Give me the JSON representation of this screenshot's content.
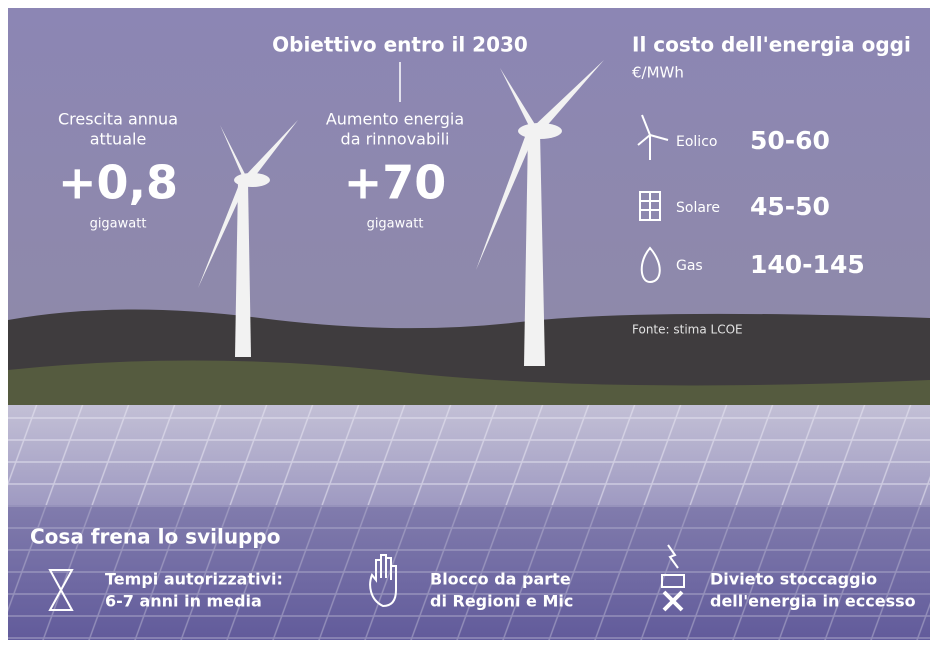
{
  "header": {
    "title": "Obiettivo entro il 2030"
  },
  "stats": [
    {
      "label_lines": [
        "Crescita annua",
        "attuale"
      ],
      "value": "+0,8",
      "unit": "gigawatt"
    },
    {
      "label_lines": [
        "Aumento energia",
        "da rinnovabili"
      ],
      "value": "+70",
      "unit": "gigawatt"
    }
  ],
  "costs": {
    "title": "Il costo dell'energia oggi",
    "unit": "€/MWh",
    "rows": [
      {
        "source": "Eolico",
        "range": "50-60"
      },
      {
        "source": "Solare",
        "range": "45-50"
      },
      {
        "source": "Gas",
        "range": "140-145"
      }
    ],
    "note": "Fonte: stima LCOE"
  },
  "obstacles": {
    "title": "Cosa frena lo sviluppo",
    "items": [
      {
        "lines": [
          "Tempi autorizzativi:",
          "6-7 anni in media"
        ]
      },
      {
        "lines": [
          "Blocco da parte",
          "di Regioni e Mic"
        ]
      },
      {
        "lines": [
          "Divieto stoccaggio",
          "dell'energia in eccesso"
        ]
      }
    ]
  }
}
